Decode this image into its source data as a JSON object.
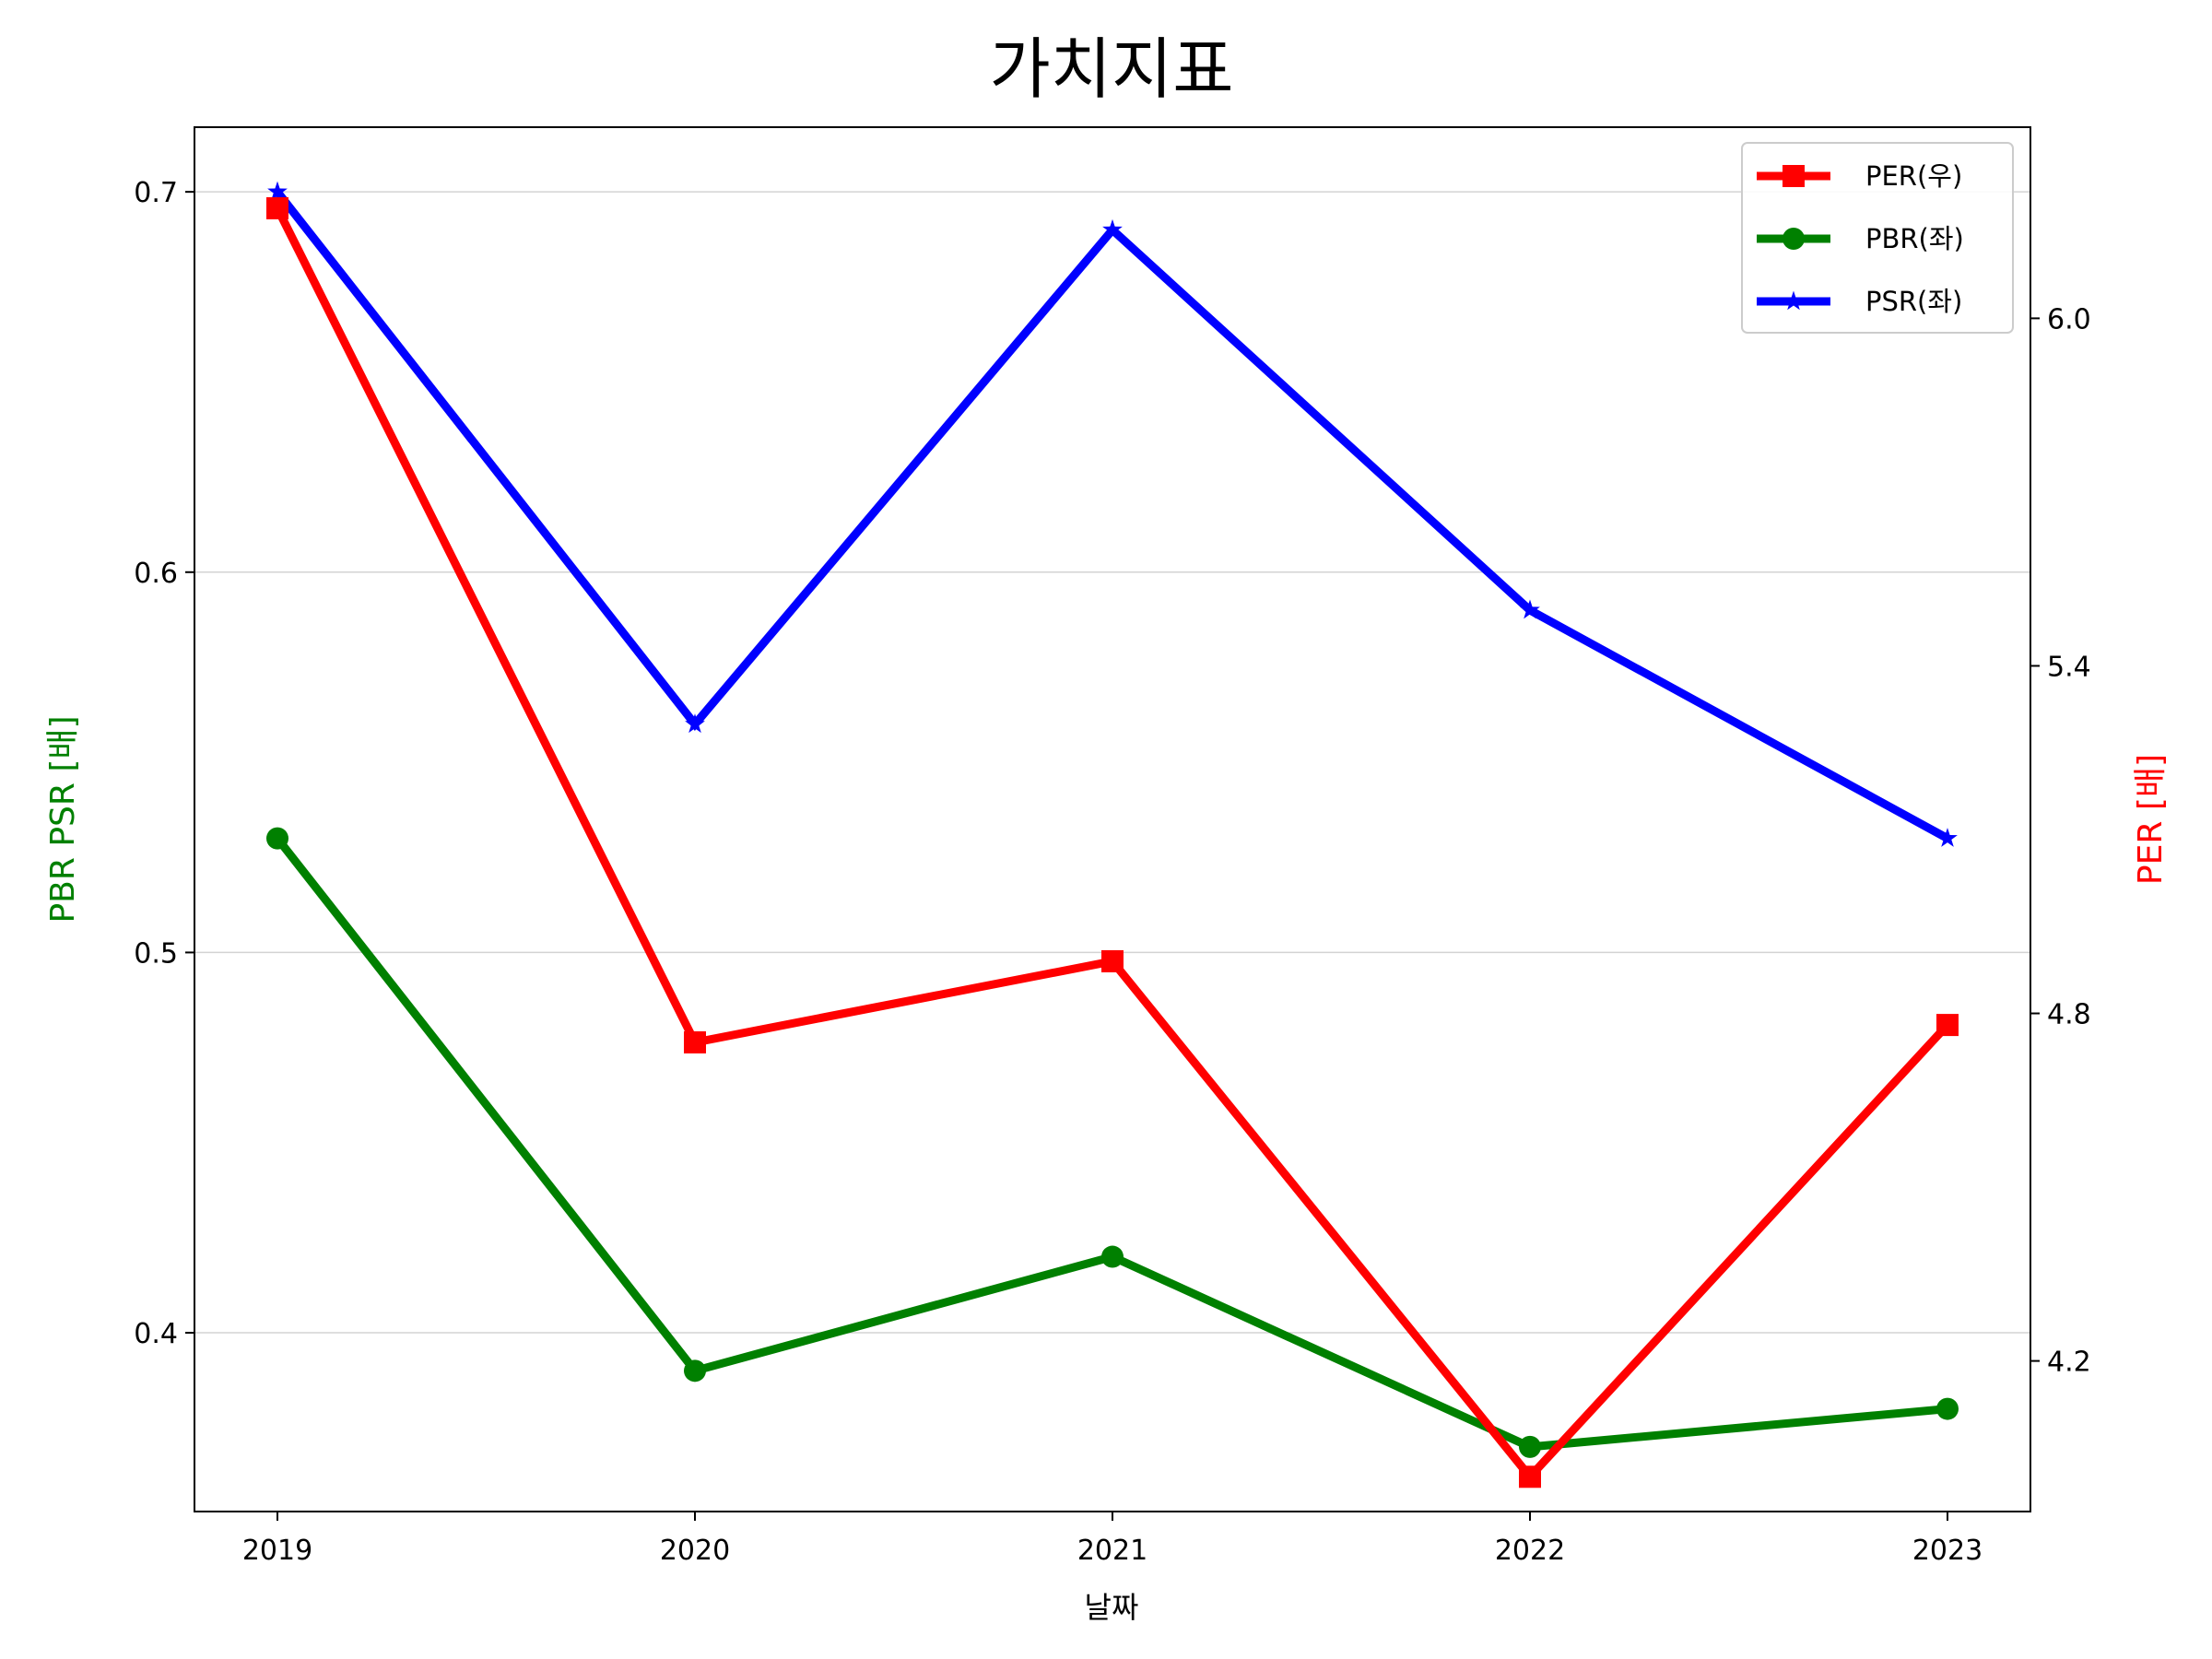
{
  "chart_data": {
    "type": "line",
    "title": "가치지표",
    "xlabel": "날짜",
    "ylabel_left": "PBR PSR [배]",
    "ylabel_right": "PER [배]",
    "categories": [
      "2019",
      "2020",
      "2021",
      "2022",
      "2023"
    ],
    "left_ylim": [
      0.353,
      0.717
    ],
    "left_ticks": [
      "0.4",
      "0.5",
      "0.6",
      "0.7"
    ],
    "right_ylim": [
      3.94,
      6.33
    ],
    "right_ticks": [
      "4.2",
      "4.8",
      "5.4",
      "6.0"
    ],
    "grid": "horizontal",
    "legend_placement": "top-right",
    "series": [
      {
        "name": "PER(우)",
        "axis": "right",
        "color": "#ff0000",
        "marker": "square",
        "values": [
          6.19,
          4.75,
          4.89,
          4.0,
          4.78
        ]
      },
      {
        "name": "PBR(좌)",
        "axis": "left",
        "color": "#008000",
        "marker": "circle",
        "values": [
          0.53,
          0.39,
          0.42,
          0.37,
          0.38
        ]
      },
      {
        "name": "PSR(좌)",
        "axis": "left",
        "color": "#0000ff",
        "marker": "star",
        "values": [
          0.7,
          0.56,
          0.69,
          0.59,
          0.53
        ]
      }
    ]
  }
}
